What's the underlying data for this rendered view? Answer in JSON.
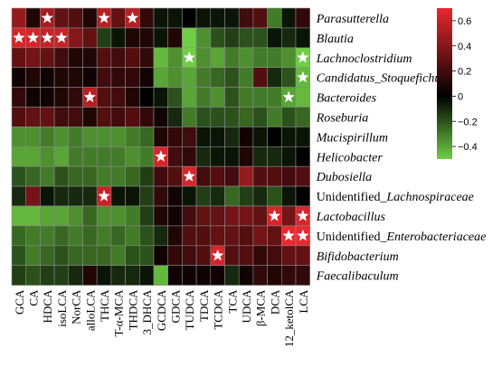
{
  "chart_data": {
    "type": "heatmap",
    "title": "",
    "xlabel": "",
    "ylabel": "",
    "columns": [
      "GCA",
      "CA",
      "HDCA",
      "isoLCA",
      "NorCA",
      "alloLCA",
      "THCA",
      "T-α-MCA",
      "THDCA",
      "3_DHCA",
      "GCDCA",
      "GDCA",
      "TUDCA",
      "TDCA",
      "TCDCA",
      "TCA",
      "UDCA",
      "β-MCA",
      "DCA",
      "12_ketolCA",
      "LCA"
    ],
    "rows": [
      {
        "label": [
          {
            "t": "Parasutterella",
            "i": true
          }
        ]
      },
      {
        "label": [
          {
            "t": "Blautia",
            "i": true
          }
        ]
      },
      {
        "label": [
          {
            "t": "Lachnoclostridium",
            "i": true
          }
        ]
      },
      {
        "label": [
          {
            "t": "Candidatus_Stoquefichus",
            "i": true
          }
        ]
      },
      {
        "label": [
          {
            "t": "Bacteroides",
            "i": true
          }
        ]
      },
      {
        "label": [
          {
            "t": "Roseburia",
            "i": true
          }
        ]
      },
      {
        "label": [
          {
            "t": "Mucispirillum",
            "i": true
          }
        ]
      },
      {
        "label": [
          {
            "t": "Helicobacter",
            "i": true
          }
        ]
      },
      {
        "label": [
          {
            "t": "Dubosiella",
            "i": true
          }
        ]
      },
      {
        "label": [
          {
            "t": "Unidentified_",
            "i": false
          },
          {
            "t": "Lachnospiraceae",
            "i": true
          }
        ]
      },
      {
        "label": [
          {
            "t": "Lactobacillus",
            "i": true
          }
        ]
      },
      {
        "label": [
          {
            "t": "Unidentified_",
            "i": false
          },
          {
            "t": "Enterobacteriaceae",
            "i": true
          }
        ]
      },
      {
        "label": [
          {
            "t": "Bifidobacterium",
            "i": true
          }
        ]
      },
      {
        "label": [
          {
            "t": "Faecalibaculum",
            "i": true
          }
        ]
      }
    ],
    "values": [
      [
        0.45,
        0.1,
        0.5,
        0.3,
        0.25,
        0.1,
        0.55,
        0.3,
        0.55,
        0.15,
        -0.05,
        -0.05,
        0.0,
        -0.05,
        -0.05,
        -0.05,
        0.2,
        0.25,
        -0.3,
        -0.05,
        0.15
      ],
      [
        0.65,
        0.65,
        0.6,
        0.6,
        0.4,
        0.3,
        -0.15,
        -0.05,
        0.1,
        0.1,
        -0.05,
        0.1,
        -0.5,
        -0.35,
        -0.2,
        -0.15,
        -0.2,
        -0.2,
        -0.05,
        -0.1,
        -0.05
      ],
      [
        0.3,
        0.35,
        0.3,
        0.2,
        0.1,
        0.1,
        0.25,
        0.2,
        0.25,
        0.15,
        -0.45,
        -0.35,
        -0.55,
        -0.35,
        -0.4,
        -0.3,
        -0.35,
        -0.3,
        -0.3,
        -0.35,
        -0.55
      ],
      [
        0.05,
        0.1,
        0.05,
        0.1,
        0.1,
        0.05,
        0.2,
        0.15,
        0.15,
        0.05,
        -0.4,
        -0.35,
        -0.4,
        -0.3,
        -0.25,
        -0.2,
        -0.3,
        0.25,
        -0.1,
        -0.2,
        -0.45
      ],
      [
        0.15,
        0.05,
        0.05,
        0.1,
        0.15,
        0.55,
        0.25,
        0.2,
        0.1,
        0.0,
        -0.05,
        -0.2,
        -0.4,
        -0.3,
        -0.35,
        -0.2,
        -0.3,
        -0.3,
        -0.3,
        -0.4,
        -0.45
      ],
      [
        0.25,
        0.3,
        0.3,
        0.2,
        0.2,
        0.1,
        0.25,
        0.2,
        0.25,
        0.15,
        0.05,
        -0.1,
        -0.3,
        -0.2,
        -0.2,
        -0.2,
        -0.25,
        -0.2,
        -0.3,
        -0.2,
        -0.25
      ],
      [
        -0.35,
        -0.35,
        -0.3,
        -0.35,
        -0.3,
        -0.35,
        -0.35,
        -0.35,
        -0.3,
        -0.25,
        0.1,
        0.15,
        0.2,
        -0.05,
        -0.05,
        -0.1,
        0.05,
        -0.05,
        0.0,
        -0.05,
        -0.05
      ],
      [
        -0.4,
        -0.4,
        -0.35,
        -0.4,
        -0.3,
        -0.3,
        -0.3,
        -0.3,
        -0.35,
        -0.3,
        0.65,
        0.2,
        0.15,
        -0.1,
        -0.05,
        -0.05,
        0.1,
        -0.1,
        -0.1,
        -0.05,
        0.0
      ],
      [
        -0.2,
        -0.25,
        -0.3,
        -0.2,
        -0.25,
        -0.25,
        -0.3,
        -0.3,
        -0.25,
        -0.15,
        0.2,
        0.25,
        0.65,
        0.2,
        0.25,
        0.2,
        0.45,
        0.25,
        0.25,
        0.2,
        0.25
      ],
      [
        -0.1,
        0.35,
        -0.05,
        -0.1,
        -0.1,
        -0.1,
        0.6,
        -0.05,
        -0.05,
        -0.15,
        0.15,
        0.05,
        -0.05,
        -0.15,
        -0.1,
        -0.25,
        -0.15,
        -0.1,
        -0.2,
        -0.05,
        0.0
      ],
      [
        -0.45,
        -0.45,
        -0.4,
        -0.4,
        -0.35,
        -0.25,
        -0.35,
        -0.35,
        -0.3,
        -0.15,
        0.1,
        0.05,
        0.2,
        0.3,
        0.3,
        0.35,
        0.35,
        0.3,
        0.65,
        0.35,
        0.65
      ],
      [
        -0.25,
        -0.3,
        -0.3,
        -0.25,
        -0.3,
        -0.25,
        -0.3,
        -0.25,
        -0.3,
        -0.2,
        -0.1,
        0.1,
        0.25,
        0.25,
        0.3,
        0.3,
        0.25,
        0.35,
        0.3,
        0.7,
        0.7
      ],
      [
        -0.2,
        -0.3,
        -0.25,
        -0.2,
        -0.25,
        -0.25,
        -0.25,
        -0.3,
        -0.2,
        -0.2,
        0.05,
        0.15,
        0.2,
        0.25,
        0.65,
        0.25,
        0.25,
        0.15,
        0.2,
        0.3,
        0.3
      ],
      [
        -0.15,
        -0.2,
        -0.15,
        -0.15,
        -0.1,
        0.1,
        -0.05,
        -0.1,
        -0.1,
        -0.05,
        -0.45,
        0.05,
        0.05,
        0.05,
        0.05,
        -0.1,
        0.05,
        0.15,
        0.1,
        0.15,
        0.15
      ]
    ],
    "stars": [
      [
        0,
        2
      ],
      [
        0,
        6
      ],
      [
        0,
        8
      ],
      [
        1,
        0
      ],
      [
        1,
        1
      ],
      [
        1,
        2
      ],
      [
        1,
        3
      ],
      [
        2,
        12
      ],
      [
        2,
        20
      ],
      [
        3,
        20
      ],
      [
        4,
        5
      ],
      [
        4,
        19
      ],
      [
        7,
        10
      ],
      [
        8,
        12
      ],
      [
        9,
        6
      ],
      [
        10,
        18
      ],
      [
        10,
        20
      ],
      [
        11,
        19
      ],
      [
        11,
        20
      ],
      [
        12,
        14
      ]
    ],
    "colorbar": {
      "min": -0.5,
      "max": 0.7,
      "ticks": [
        0.6,
        0.4,
        0.2,
        0,
        -0.2,
        -0.4
      ],
      "low_color": "#6fce44",
      "mid_color": "#000000",
      "high_color": "#e8282d"
    },
    "legend_position": "right",
    "grid": true
  }
}
